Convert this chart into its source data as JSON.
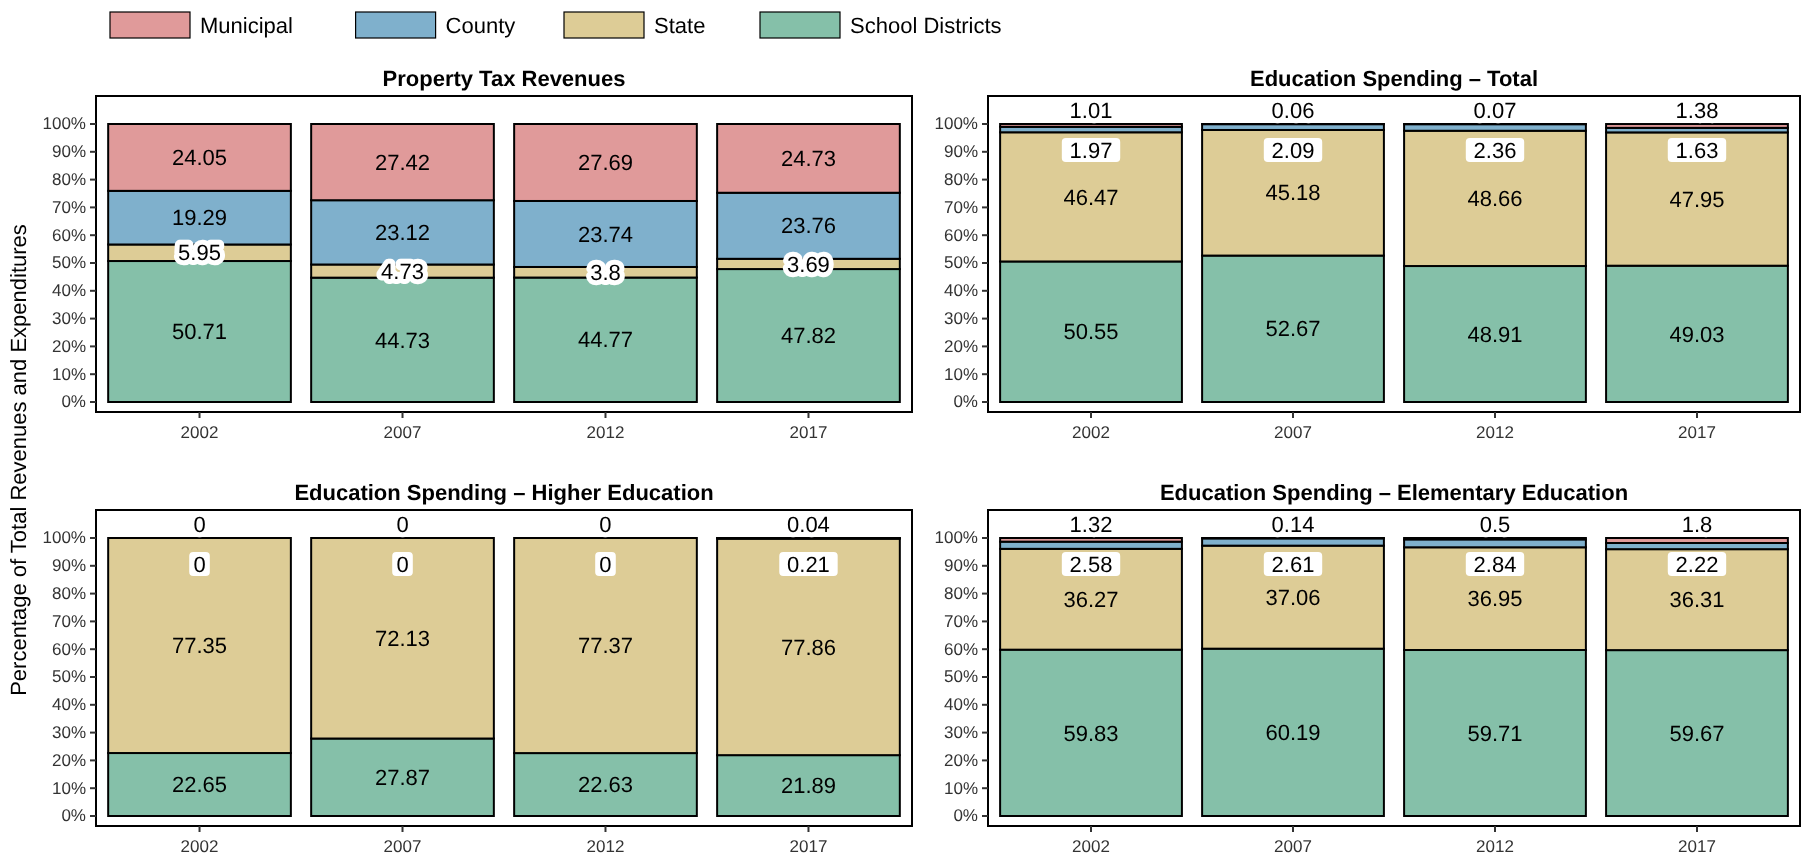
{
  "chart_data": [
    {
      "type": "bar",
      "stacked": true,
      "title": "Property Tax Revenues",
      "ylabel": "Percentage of Total Revenues and Expenditures",
      "legend": "top",
      "data_labels": true,
      "grid": false,
      "categories": [
        "2002",
        "2007",
        "2012",
        "2017"
      ],
      "ylim": [
        0,
        100
      ],
      "yticks": [
        {
          "value": 0,
          "label": "0%"
        },
        {
          "value": 10,
          "label": "10%"
        },
        {
          "value": 20,
          "label": "20%"
        },
        {
          "value": 30,
          "label": "30%"
        },
        {
          "value": 40,
          "label": "40%"
        },
        {
          "value": 50,
          "label": "50%"
        },
        {
          "value": 60,
          "label": "60%"
        },
        {
          "value": 70,
          "label": "70%"
        },
        {
          "value": 80,
          "label": "80%"
        },
        {
          "value": 90,
          "label": "90%"
        },
        {
          "value": 100,
          "label": "100%"
        }
      ],
      "series": [
        {
          "name": "School Districts",
          "color": "#85c0a9",
          "values": [
            50.71,
            44.73,
            44.77,
            47.82
          ]
        },
        {
          "name": "State",
          "color": "#ddcc96",
          "values": [
            5.95,
            4.73,
            3.8,
            3.69
          ]
        },
        {
          "name": "County",
          "color": "#7fb0cc",
          "values": [
            19.29,
            23.12,
            23.74,
            23.76
          ]
        },
        {
          "name": "Municipal",
          "color": "#e09a9a",
          "values": [
            24.05,
            27.42,
            27.69,
            24.73
          ]
        }
      ]
    },
    {
      "type": "bar",
      "stacked": true,
      "title": "Education Spending – Total",
      "data_labels": true,
      "grid": false,
      "categories": [
        "2002",
        "2007",
        "2012",
        "2017"
      ],
      "ylim": [
        0,
        100
      ],
      "yticks": [
        {
          "value": 0,
          "label": "0%"
        },
        {
          "value": 10,
          "label": "10%"
        },
        {
          "value": 20,
          "label": "20%"
        },
        {
          "value": 30,
          "label": "30%"
        },
        {
          "value": 40,
          "label": "40%"
        },
        {
          "value": 50,
          "label": "50%"
        },
        {
          "value": 60,
          "label": "60%"
        },
        {
          "value": 70,
          "label": "70%"
        },
        {
          "value": 80,
          "label": "80%"
        },
        {
          "value": 90,
          "label": "90%"
        },
        {
          "value": 100,
          "label": "100%"
        }
      ],
      "series": [
        {
          "color": "#85c0a9",
          "values": [
            50.55,
            52.67,
            48.91,
            49.03
          ]
        },
        {
          "color": "#ddcc96",
          "values": [
            46.47,
            45.18,
            48.66,
            47.95
          ]
        },
        {
          "color": "#7fb0cc",
          "values": [
            1.97,
            2.09,
            2.36,
            1.63
          ]
        },
        {
          "color": "#e09a9a",
          "values": [
            1.01,
            0.06,
            0.07,
            1.38
          ]
        }
      ]
    },
    {
      "type": "bar",
      "stacked": true,
      "title": "Education Spending – Higher Education",
      "data_labels": true,
      "grid": false,
      "categories": [
        "2002",
        "2007",
        "2012",
        "2017"
      ],
      "ylim": [
        0,
        100
      ],
      "yticks": [
        {
          "value": 0,
          "label": "0%"
        },
        {
          "value": 10,
          "label": "10%"
        },
        {
          "value": 20,
          "label": "20%"
        },
        {
          "value": 30,
          "label": "30%"
        },
        {
          "value": 40,
          "label": "40%"
        },
        {
          "value": 50,
          "label": "50%"
        },
        {
          "value": 60,
          "label": "60%"
        },
        {
          "value": 70,
          "label": "70%"
        },
        {
          "value": 80,
          "label": "80%"
        },
        {
          "value": 90,
          "label": "90%"
        },
        {
          "value": 100,
          "label": "100%"
        }
      ],
      "series": [
        {
          "color": "#85c0a9",
          "values": [
            22.65,
            27.87,
            22.63,
            21.89
          ]
        },
        {
          "color": "#ddcc96",
          "values": [
            77.35,
            72.13,
            77.37,
            77.86
          ]
        },
        {
          "color": "#7fb0cc",
          "values": [
            0,
            0,
            0,
            0.21
          ]
        },
        {
          "color": "#e09a9a",
          "values": [
            0,
            0,
            0,
            0.04
          ]
        }
      ]
    },
    {
      "type": "bar",
      "stacked": true,
      "title": "Education Spending – Elementary Education",
      "data_labels": true,
      "grid": false,
      "categories": [
        "2002",
        "2007",
        "2012",
        "2017"
      ],
      "ylim": [
        0,
        100
      ],
      "yticks": [
        {
          "value": 0,
          "label": "0%"
        },
        {
          "value": 10,
          "label": "10%"
        },
        {
          "value": 20,
          "label": "20%"
        },
        {
          "value": 30,
          "label": "30%"
        },
        {
          "value": 40,
          "label": "40%"
        },
        {
          "value": 50,
          "label": "50%"
        },
        {
          "value": 60,
          "label": "60%"
        },
        {
          "value": 70,
          "label": "70%"
        },
        {
          "value": 80,
          "label": "80%"
        },
        {
          "value": 90,
          "label": "90%"
        },
        {
          "value": 100,
          "label": "100%"
        }
      ],
      "series": [
        {
          "color": "#85c0a9",
          "values": [
            59.83,
            60.19,
            59.71,
            59.67
          ]
        },
        {
          "color": "#ddcc96",
          "values": [
            36.27,
            37.06,
            36.95,
            36.31
          ]
        },
        {
          "color": "#7fb0cc",
          "values": [
            2.58,
            2.61,
            2.84,
            2.22
          ]
        },
        {
          "color": "#e09a9a",
          "values": [
            1.32,
            0.14,
            0.5,
            1.8
          ]
        }
      ]
    }
  ]
}
